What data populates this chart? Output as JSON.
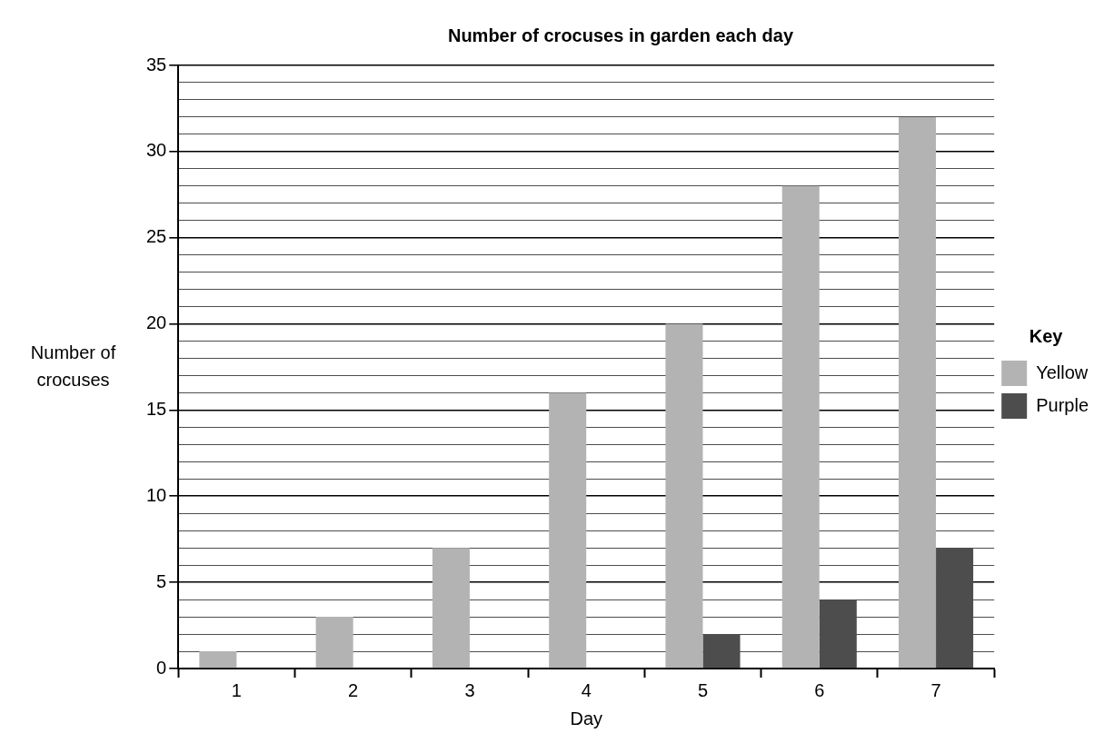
{
  "chart_data": {
    "type": "bar",
    "title": "Number of crocuses in garden each day",
    "xlabel": "Day",
    "ylabel": "Number of crocuses",
    "legend_title": "Key",
    "legend": "right",
    "grid": "y",
    "categories": [
      "1",
      "2",
      "3",
      "4",
      "5",
      "6",
      "7"
    ],
    "series": [
      {
        "name": "Yellow",
        "color": "#b3b3b3",
        "values": [
          1,
          3,
          7,
          16,
          20,
          28,
          32
        ]
      },
      {
        "name": "Purple",
        "color": "#4d4d4d",
        "values": [
          0,
          0,
          0,
          0,
          2,
          4,
          7
        ]
      }
    ],
    "ylim": [
      0,
      35
    ],
    "yticks": [
      0,
      {
        "value": 1,
        "label": null
      },
      {
        "value": 2,
        "label": null
      },
      {
        "value": 3,
        "label": null
      },
      {
        "value": 4,
        "label": null
      },
      5,
      {
        "value": 6,
        "label": null
      },
      {
        "value": 7,
        "label": null
      },
      {
        "value": 8,
        "label": null
      },
      {
        "value": 9,
        "label": null
      },
      10,
      {
        "value": 11,
        "label": null
      },
      {
        "value": 12,
        "label": null
      },
      {
        "value": 13,
        "label": null
      },
      {
        "value": 14,
        "label": null
      },
      15,
      {
        "value": 16,
        "label": null
      },
      {
        "value": 17,
        "label": null
      },
      {
        "value": 18,
        "label": null
      },
      {
        "value": 19,
        "label": null
      },
      20,
      {
        "value": 21,
        "label": null
      },
      {
        "value": 22,
        "label": null
      },
      {
        "value": 23,
        "label": null
      },
      {
        "value": 24,
        "label": null
      },
      25,
      {
        "value": 26,
        "label": null
      },
      {
        "value": 27,
        "label": null
      },
      {
        "value": 28,
        "label": null
      },
      {
        "value": 29,
        "label": null
      },
      30,
      {
        "value": 31,
        "label": null
      },
      {
        "value": 32,
        "label": null
      },
      {
        "value": 33,
        "label": null
      },
      {
        "value": 34,
        "label": null
      },
      35
    ]
  }
}
